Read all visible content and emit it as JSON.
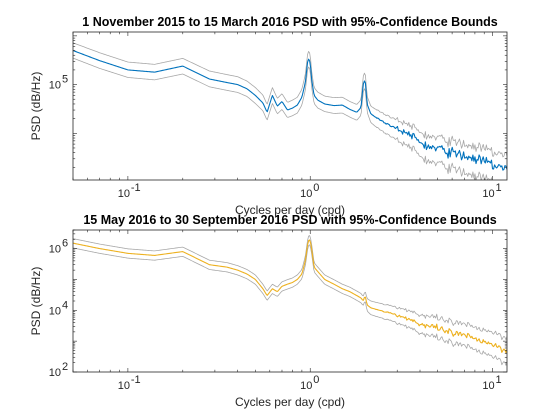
{
  "chart_data": [
    {
      "type": "line",
      "title": "1 November 2015 to 15 March 2016 PSD with 95%-Confidence Bounds",
      "xlabel": "Cycles per day (cpd)",
      "ylabel": "PSD (dB/Hz)",
      "xscale": "log",
      "yscale": "log",
      "xlim": [
        0.05,
        12
      ],
      "ylim": [
        1100,
        1200000
      ],
      "x_ticks": [
        0.1,
        1,
        10
      ],
      "x_tick_labels": [
        "10",
        "10",
        "10"
      ],
      "x_tick_exponents": [
        "-1",
        "0",
        "1"
      ],
      "y_ticks": [
        100000
      ],
      "y_tick_labels": [
        "10"
      ],
      "y_tick_exponents": [
        "5"
      ],
      "grid": false,
      "series": [
        {
          "role": "estimate",
          "color": "#0072BD",
          "x": [
            0.05,
            0.07,
            0.1,
            0.14,
            0.2,
            0.28,
            0.35,
            0.4,
            0.45,
            0.5,
            0.55,
            0.58,
            0.62,
            0.66,
            0.7,
            0.75,
            0.8,
            0.85,
            0.9,
            0.94,
            0.97,
            0.985,
            1.0,
            1.02,
            1.05,
            1.1,
            1.2,
            1.35,
            1.5,
            1.65,
            1.8,
            1.9,
            1.95,
            2.0,
            2.05,
            2.15,
            2.4,
            2.8,
            3.2,
            3.6,
            4.0,
            4.5,
            5.0,
            6.0,
            7.0,
            8.0,
            9.0,
            10.0,
            11.0,
            12.0
          ],
          "y": [
            500000,
            310000,
            200000,
            180000,
            240000,
            130000,
            110000,
            100000,
            82000,
            60000,
            42000,
            27000,
            60000,
            36000,
            45000,
            30000,
            33000,
            38000,
            55000,
            110000,
            320000,
            340000,
            280000,
            120000,
            60000,
            48000,
            40000,
            37000,
            38000,
            31000,
            27000,
            34000,
            100000,
            130000,
            40000,
            25000,
            19000,
            14000,
            11000,
            9000,
            6500,
            5200,
            4800,
            4000,
            3400,
            3000,
            2600,
            2300,
            2000,
            1800
          ]
        },
        {
          "role": "upper-bound",
          "color": "#A8A8A8",
          "x": [
            0.05,
            0.07,
            0.1,
            0.14,
            0.2,
            0.28,
            0.35,
            0.4,
            0.45,
            0.5,
            0.55,
            0.58,
            0.62,
            0.66,
            0.7,
            0.75,
            0.8,
            0.85,
            0.9,
            0.94,
            0.97,
            0.985,
            1.0,
            1.02,
            1.05,
            1.1,
            1.2,
            1.35,
            1.5,
            1.65,
            1.8,
            1.9,
            1.95,
            2.0,
            2.05,
            2.15,
            2.4,
            2.8,
            3.2,
            3.6,
            4.0,
            4.5,
            5.0,
            6.0,
            7.0,
            8.0,
            9.0,
            10.0,
            11.0,
            12.0
          ],
          "y": [
            720000,
            450000,
            290000,
            260000,
            345000,
            190000,
            160000,
            145000,
            118000,
            87000,
            61000,
            39000,
            87000,
            52000,
            65000,
            43000,
            48000,
            55000,
            80000,
            160000,
            460000,
            490000,
            405000,
            175000,
            87000,
            70000,
            58000,
            54000,
            55000,
            45000,
            39000,
            49000,
            145000,
            188000,
            58000,
            36000,
            28000,
            21000,
            17000,
            14000,
            10500,
            8500,
            8000,
            6800,
            5900,
            5300,
            4700,
            4200,
            3700,
            3400
          ]
        },
        {
          "role": "lower-bound",
          "color": "#A8A8A8",
          "x": [
            0.05,
            0.07,
            0.1,
            0.14,
            0.2,
            0.28,
            0.35,
            0.4,
            0.45,
            0.5,
            0.55,
            0.58,
            0.62,
            0.66,
            0.7,
            0.75,
            0.8,
            0.85,
            0.9,
            0.94,
            0.97,
            0.985,
            1.0,
            1.02,
            1.05,
            1.1,
            1.2,
            1.35,
            1.5,
            1.65,
            1.8,
            1.9,
            1.95,
            2.0,
            2.05,
            2.15,
            2.4,
            2.8,
            3.2,
            3.6,
            4.0,
            4.5,
            5.0,
            6.0,
            7.0,
            8.0,
            9.0,
            10.0,
            11.0,
            12.0
          ],
          "y": [
            350000,
            215000,
            140000,
            125000,
            165000,
            90000,
            76000,
            69000,
            57000,
            41000,
            29000,
            18500,
            41000,
            25000,
            31000,
            21000,
            23000,
            26000,
            38000,
            76000,
            220000,
            235000,
            195000,
            83000,
            41000,
            33000,
            28000,
            25500,
            26000,
            21500,
            18500,
            23500,
            69000,
            90000,
            27500,
            16500,
            12000,
            8500,
            6300,
            5000,
            3400,
            2600,
            2350,
            1900,
            1550,
            1350,
            1150,
            1000,
            880,
            800
          ]
        }
      ]
    },
    {
      "type": "line",
      "title": "15 May 2016 to 30 September 2016 PSD with 95%-Confidence Bounds",
      "xlabel": "Cycles per day (cpd)",
      "ylabel": "PSD (dB/Hz)",
      "xscale": "log",
      "yscale": "log",
      "xlim": [
        0.05,
        12
      ],
      "ylim": [
        100,
        4000000
      ],
      "x_ticks": [
        0.1,
        1,
        10
      ],
      "x_tick_labels": [
        "10",
        "10",
        "10"
      ],
      "x_tick_exponents": [
        "-1",
        "0",
        "1"
      ],
      "y_ticks": [
        100,
        10000,
        1000000
      ],
      "y_tick_labels": [
        "10",
        "10",
        "10"
      ],
      "y_tick_exponents": [
        "2",
        "4",
        "6"
      ],
      "grid": false,
      "series": [
        {
          "role": "estimate",
          "color": "#EDB120",
          "x": [
            0.05,
            0.07,
            0.1,
            0.14,
            0.2,
            0.28,
            0.35,
            0.4,
            0.45,
            0.5,
            0.55,
            0.58,
            0.62,
            0.66,
            0.7,
            0.75,
            0.8,
            0.85,
            0.9,
            0.94,
            0.97,
            0.985,
            1.0,
            1.02,
            1.05,
            1.1,
            1.2,
            1.35,
            1.5,
            1.65,
            1.8,
            1.9,
            1.95,
            2.0,
            2.05,
            2.15,
            2.4,
            2.8,
            3.2,
            3.6,
            4.0,
            4.5,
            5.0,
            6.0,
            7.0,
            8.0,
            9.0,
            10.0,
            11.0,
            12.0
          ],
          "y": [
            1500000,
            1000000,
            700000,
            600000,
            800000,
            300000,
            250000,
            200000,
            150000,
            100000,
            50000,
            30000,
            50000,
            40000,
            60000,
            70000,
            80000,
            100000,
            150000,
            400000,
            1500000,
            2000000,
            1800000,
            900000,
            250000,
            180000,
            100000,
            70000,
            50000,
            40000,
            30000,
            25000,
            20000,
            30000,
            15000,
            12000,
            10000,
            8000,
            6000,
            5000,
            3500,
            3000,
            2500,
            1800,
            1500,
            1200,
            1000,
            800,
            600,
            500
          ]
        },
        {
          "role": "upper-bound",
          "color": "#A8A8A8",
          "x": [
            0.05,
            0.07,
            0.1,
            0.14,
            0.2,
            0.28,
            0.35,
            0.4,
            0.45,
            0.5,
            0.55,
            0.58,
            0.62,
            0.66,
            0.7,
            0.75,
            0.8,
            0.85,
            0.9,
            0.94,
            0.97,
            0.985,
            1.0,
            1.02,
            1.05,
            1.1,
            1.2,
            1.35,
            1.5,
            1.65,
            1.8,
            1.9,
            1.95,
            2.0,
            2.05,
            2.15,
            2.4,
            2.8,
            3.2,
            3.6,
            4.0,
            4.5,
            5.0,
            6.0,
            7.0,
            8.0,
            9.0,
            10.0,
            11.0,
            12.0
          ],
          "y": [
            2100000,
            1400000,
            980000,
            840000,
            1120000,
            420000,
            350000,
            280000,
            210000,
            140000,
            70000,
            42000,
            70000,
            56000,
            84000,
            98000,
            112000,
            140000,
            210000,
            560000,
            2100000,
            2800000,
            2500000,
            1260000,
            350000,
            252000,
            140000,
            98000,
            70000,
            56000,
            42000,
            35000,
            28000,
            42000,
            24000,
            20000,
            17000,
            14000,
            11000,
            9500,
            7000,
            6200,
            5300,
            4000,
            3400,
            2800,
            2400,
            2000,
            1550,
            1300
          ]
        },
        {
          "role": "lower-bound",
          "color": "#A8A8A8",
          "x": [
            0.05,
            0.07,
            0.1,
            0.14,
            0.2,
            0.28,
            0.35,
            0.4,
            0.45,
            0.5,
            0.55,
            0.58,
            0.62,
            0.66,
            0.7,
            0.75,
            0.8,
            0.85,
            0.9,
            0.94,
            0.97,
            0.985,
            1.0,
            1.02,
            1.05,
            1.1,
            1.2,
            1.35,
            1.5,
            1.65,
            1.8,
            1.9,
            1.95,
            2.0,
            2.05,
            2.15,
            2.4,
            2.8,
            3.2,
            3.6,
            4.0,
            4.5,
            5.0,
            6.0,
            7.0,
            8.0,
            9.0,
            10.0,
            11.0,
            12.0
          ],
          "y": [
            1050000,
            700000,
            490000,
            420000,
            560000,
            210000,
            175000,
            140000,
            105000,
            70000,
            35000,
            21000,
            35000,
            28000,
            42000,
            49000,
            56000,
            70000,
            105000,
            280000,
            1050000,
            1400000,
            1260000,
            630000,
            175000,
            126000,
            70000,
            49000,
            35000,
            28000,
            21000,
            17500,
            14000,
            21000,
            9500,
            7200,
            5900,
            4600,
            3300,
            2700,
            1800,
            1500,
            1200,
            840,
            680,
            530,
            430,
            330,
            240,
            195
          ]
        }
      ]
    }
  ]
}
